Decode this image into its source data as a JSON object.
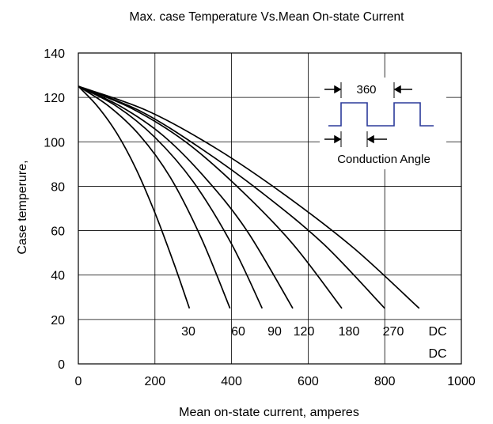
{
  "chart_data": {
    "type": "line",
    "title": "Max. case Temperature Vs.Mean  On-state Current",
    "xlabel": "Mean on-state current, amperes",
    "ylabel": "Case temperure,",
    "xlim": [
      0,
      1000
    ],
    "ylim": [
      0,
      140
    ],
    "x_ticks": [
      "0",
      "200",
      "400",
      "600",
      "800",
      "1000"
    ],
    "y_ticks": [
      "0",
      "20",
      "40",
      "60",
      "80",
      "100",
      "120",
      "140"
    ],
    "grid": true,
    "series": [
      {
        "name": "30",
        "x": [
          0,
          50,
          100,
          150,
          200,
          250,
          290
        ],
        "y": [
          125,
          116,
          104,
          88,
          68,
          45,
          25
        ]
      },
      {
        "name": "60",
        "x": [
          0,
          80,
          160,
          240,
          320,
          396
        ],
        "y": [
          125,
          116,
          103,
          84,
          57,
          25
        ]
      },
      {
        "name": "90",
        "x": [
          0,
          100,
          200,
          300,
          400,
          480
        ],
        "y": [
          125,
          116,
          102,
          82,
          54,
          25
        ]
      },
      {
        "name": "120",
        "x": [
          0,
          110,
          220,
          330,
          440,
          560
        ],
        "y": [
          125,
          116,
          103,
          84,
          60,
          25
        ]
      },
      {
        "name": "180",
        "x": [
          0,
          140,
          280,
          420,
          560,
          688
        ],
        "y": [
          125,
          115,
          100,
          79,
          54,
          25
        ]
      },
      {
        "name": "270",
        "x": [
          0,
          160,
          320,
          480,
          640,
          800
        ],
        "y": [
          125,
          114,
          97,
          77,
          54,
          25
        ]
      },
      {
        "name": "DC",
        "x": [
          0,
          180,
          360,
          540,
          720,
          890
        ],
        "y": [
          125,
          114,
          97,
          76,
          52,
          25
        ]
      }
    ],
    "curve_labels": [
      "30",
      "60",
      "90",
      "120",
      "180",
      "270",
      "DC",
      "DC"
    ],
    "inset": {
      "angle_label": "360",
      "caption": "Conduction Angle"
    }
  }
}
